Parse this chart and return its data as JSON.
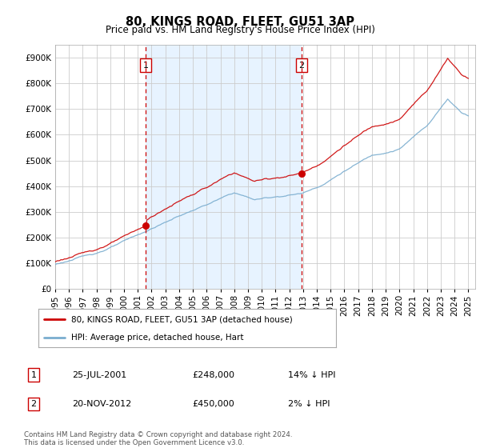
{
  "title": "80, KINGS ROAD, FLEET, GU51 3AP",
  "subtitle": "Price paid vs. HM Land Registry's House Price Index (HPI)",
  "legend_line1": "80, KINGS ROAD, FLEET, GU51 3AP (detached house)",
  "legend_line2": "HPI: Average price, detached house, Hart",
  "annotation1_label": "1",
  "annotation1_date": "25-JUL-2001",
  "annotation1_price": "£248,000",
  "annotation1_hpi": "14% ↓ HPI",
  "annotation2_label": "2",
  "annotation2_date": "20-NOV-2012",
  "annotation2_price": "£450,000",
  "annotation2_hpi": "2% ↓ HPI",
  "footer": "Contains HM Land Registry data © Crown copyright and database right 2024.\nThis data is licensed under the Open Government Licence v3.0.",
  "sale1_year": 2001.56,
  "sale1_value": 248000,
  "sale2_year": 2012.89,
  "sale2_value": 450000,
  "vline1_year": 2001.56,
  "vline2_year": 2012.89,
  "red_color": "#cc0000",
  "blue_color": "#7aadcf",
  "shade_color": "#ddeeff",
  "vline_color": "#cc0000",
  "background_color": "#ffffff",
  "grid_color": "#cccccc",
  "ylim": [
    0,
    950000
  ],
  "xlim_start": 1995.0,
  "xlim_end": 2025.5
}
